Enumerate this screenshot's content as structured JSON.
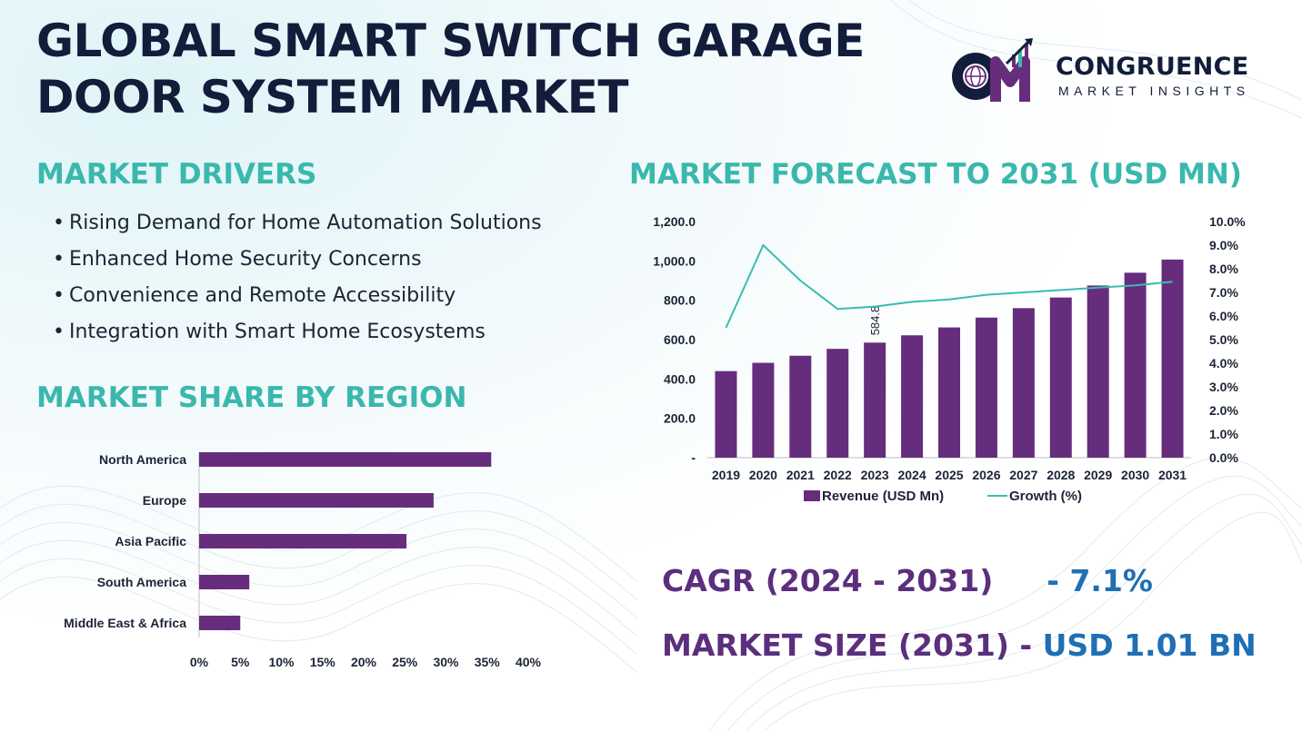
{
  "title": {
    "line1": "GLOBAL SMART SWITCH GARAGE",
    "line2": "DOOR SYSTEM MARKET"
  },
  "logo": {
    "name": "CONGRUENCE",
    "tagline": "MARKET INSIGHTS",
    "monogram": "CM"
  },
  "colors": {
    "navy": "#111d3a",
    "teal": "#3ab8ad",
    "purple": "#662d7d",
    "blue": "#1f6fb4",
    "line": "#3bbcb2"
  },
  "drivers": {
    "heading": "MARKET DRIVERS",
    "items": [
      "Rising Demand for Home Automation Solutions",
      "Enhanced Home Security Concerns",
      "Convenience and Remote Accessibility",
      "Integration with Smart Home Ecosystems"
    ]
  },
  "region": {
    "heading": "MARKET SHARE BY REGION"
  },
  "forecast": {
    "heading": "MARKET FORECAST TO 2031 (USD MN)"
  },
  "kpis": {
    "cagr_label": "CAGR (2024 - 2031)",
    "cagr_value": "- 7.1%",
    "size_label": "MARKET SIZE (2031)",
    "size_sep": "-",
    "size_value": "USD 1.01 BN"
  },
  "chart_data": [
    {
      "type": "bar",
      "orientation": "horizontal",
      "title": "",
      "categories": [
        "North America",
        "Europe",
        "Asia Pacific",
        "South America",
        "Middle East & Africa"
      ],
      "values": [
        35.5,
        28.5,
        25.2,
        6.1,
        5.0
      ],
      "unit": "%",
      "xlim": [
        0,
        40
      ],
      "xticks": [
        "0%",
        "5%",
        "10%",
        "15%",
        "20%",
        "25%",
        "30%",
        "35%",
        "40%"
      ],
      "grid": false,
      "color": "#662d7d"
    },
    {
      "type": "bar",
      "combo": "bar+line",
      "title": "",
      "categories": [
        "2019",
        "2020",
        "2021",
        "2022",
        "2023",
        "2024",
        "2025",
        "2026",
        "2027",
        "2028",
        "2029",
        "2030",
        "2031"
      ],
      "series": [
        {
          "name": "Revenue (USD Mn)",
          "axis": "left",
          "type": "bar",
          "color": "#662d7d",
          "values": [
            440,
            482,
            518,
            553,
            584.8,
            622,
            662,
            712,
            760,
            814,
            875,
            940,
            1007
          ]
        },
        {
          "name": "Growth (%)",
          "axis": "right",
          "type": "line",
          "color": "#3bbcb2",
          "values": [
            5.5,
            9.0,
            7.5,
            6.3,
            6.4,
            6.6,
            6.7,
            6.9,
            7.0,
            7.1,
            7.2,
            7.3,
            7.45
          ]
        }
      ],
      "data_labels": [
        {
          "index": 4,
          "text": "584.8"
        }
      ],
      "ylim_left": [
        0,
        1200
      ],
      "yticks_left": [
        "-",
        "200.0",
        "400.0",
        "600.0",
        "800.0",
        "1,000.0",
        "1,200.0"
      ],
      "ylim_right": [
        0,
        10
      ],
      "yticks_right": [
        "0.0%",
        "1.0%",
        "2.0%",
        "3.0%",
        "4.0%",
        "5.0%",
        "6.0%",
        "7.0%",
        "8.0%",
        "9.0%",
        "10.0%"
      ],
      "legend": "bottom",
      "grid": false
    }
  ]
}
